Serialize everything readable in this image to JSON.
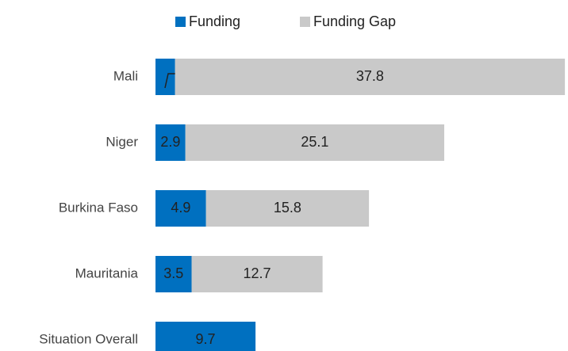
{
  "chart_data": {
    "type": "bar",
    "orientation": "horizontal",
    "stacked": true,
    "categories": [
      "Mali",
      "Niger",
      "Burkina Faso",
      "Mauritania",
      "Situation Overall"
    ],
    "series": [
      {
        "name": "Funding",
        "color": "#0070c0",
        "values": [
          1.9,
          2.9,
          4.9,
          3.5,
          9.7
        ]
      },
      {
        "name": "Funding Gap",
        "color": "#c9c9c9",
        "values": [
          37.8,
          25.1,
          15.8,
          12.7,
          null
        ]
      }
    ],
    "xlim": [
      0,
      40
    ],
    "legend": "top"
  }
}
